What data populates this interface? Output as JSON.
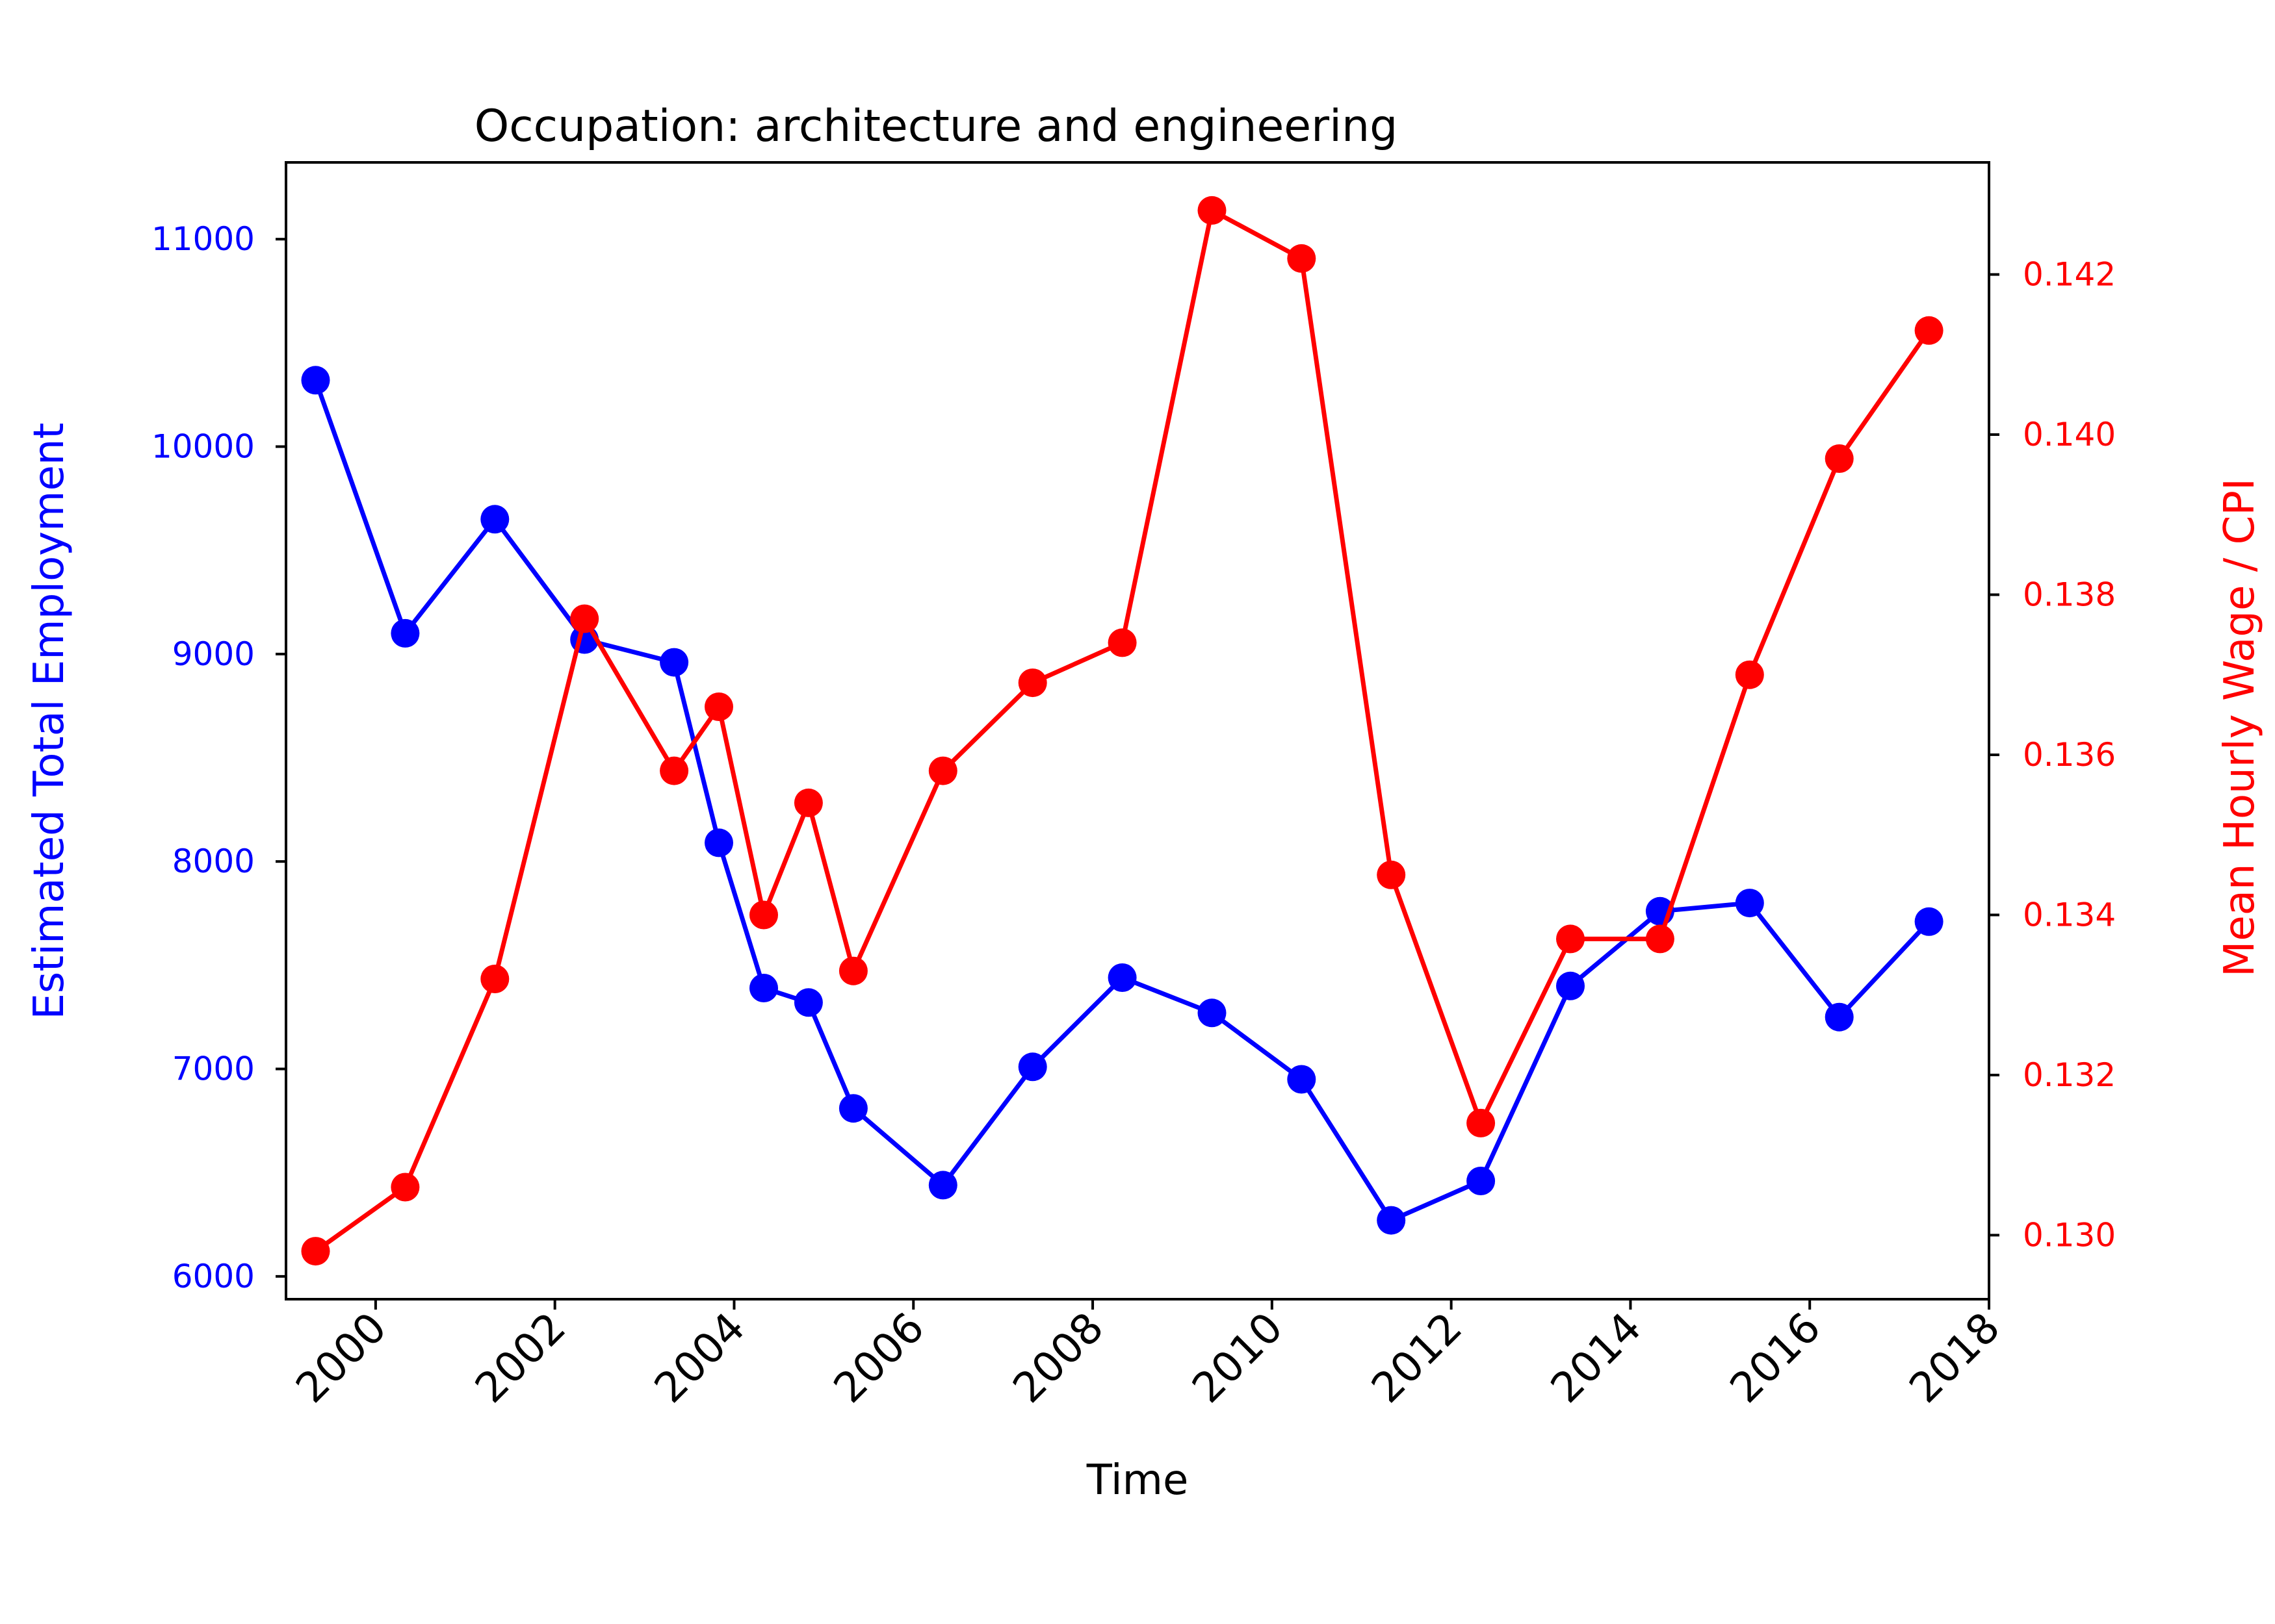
{
  "chart_data": {
    "type": "line",
    "title": "Occupation:  architecture and engineering",
    "xlabel": "Time",
    "ylabel_left": "Estimated Total Employment",
    "ylabel_right": "Mean Hourly Wage / CPI",
    "xlim": [
      1999.0,
      2018.0
    ],
    "ylim_left": [
      5890,
      11370
    ],
    "ylim_right": [
      0.1292,
      0.1434
    ],
    "x_ticks": [
      2000,
      2002,
      2004,
      2006,
      2008,
      2010,
      2012,
      2014,
      2016,
      2018
    ],
    "y_ticks_left": [
      6000,
      7000,
      8000,
      9000,
      10000,
      11000
    ],
    "y_ticks_right": [
      0.13,
      0.132,
      0.134,
      0.136,
      0.138,
      0.14,
      0.142
    ],
    "grid": false,
    "legend": false,
    "colors": {
      "left_axis": "#0000ff",
      "right_axis": "#ff0000",
      "text": "#000000"
    },
    "series": [
      {
        "axis": "left",
        "color": "#0000ff",
        "x": [
          1999.33,
          2000.33,
          2001.33,
          2002.33,
          2003.33,
          2003.83,
          2004.33,
          2004.83,
          2005.33,
          2006.33,
          2007.33,
          2008.33,
          2009.33,
          2010.33,
          2011.33,
          2012.33,
          2013.33,
          2014.33,
          2015.33,
          2016.33,
          2017.33
        ],
        "y": [
          10320,
          9100,
          9650,
          9070,
          8960,
          8090,
          7390,
          7320,
          6810,
          6440,
          7010,
          7440,
          7270,
          6950,
          6270,
          6460,
          7400,
          7760,
          7800,
          7250,
          7710
        ]
      },
      {
        "axis": "right",
        "color": "#ff0000",
        "x": [
          1999.33,
          2000.33,
          2001.33,
          2002.33,
          2003.33,
          2003.83,
          2004.33,
          2004.83,
          2005.33,
          2006.33,
          2007.33,
          2008.33,
          2009.33,
          2010.33,
          2011.33,
          2012.33,
          2013.33,
          2014.33,
          2015.33,
          2016.33,
          2017.33
        ],
        "y": [
          0.1298,
          0.1306,
          0.1332,
          0.1377,
          0.1358,
          0.1366,
          0.134,
          0.1354,
          0.1333,
          0.1358,
          0.1369,
          0.1374,
          0.1428,
          0.1422,
          0.1345,
          0.1314,
          0.1337,
          0.1337,
          0.137,
          0.1397,
          0.1413
        ]
      }
    ]
  }
}
